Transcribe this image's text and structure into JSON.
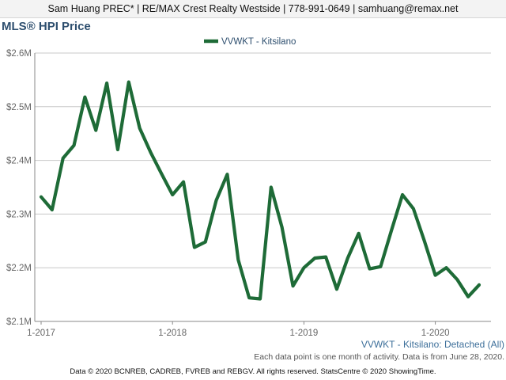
{
  "header": {
    "contact": "Sam Huang PREC* | RE/MAX Crest Realty Westside | 778-991-0649 | samhuang@remax.net"
  },
  "chart_data": {
    "type": "line",
    "title": "MLS® HPI Price",
    "legend_position": "top-center",
    "grid": true,
    "ylim": [
      2100000,
      2600000
    ],
    "y_ticks": [
      {
        "value": 2600000,
        "label": "$2.6M"
      },
      {
        "value": 2500000,
        "label": "$2.5M"
      },
      {
        "value": 2400000,
        "label": "$2.4M"
      },
      {
        "value": 2300000,
        "label": "$2.3M"
      },
      {
        "value": 2200000,
        "label": "$2.2M"
      },
      {
        "value": 2100000,
        "label": "$2.1M"
      }
    ],
    "x_ticks": [
      {
        "index": 0,
        "label": "1-2017"
      },
      {
        "index": 12,
        "label": "1-2018"
      },
      {
        "index": 24,
        "label": "1-2019"
      },
      {
        "index": 36,
        "label": "1-2020"
      }
    ],
    "x": [
      "1-2017",
      "2-2017",
      "3-2017",
      "4-2017",
      "5-2017",
      "6-2017",
      "7-2017",
      "8-2017",
      "9-2017",
      "10-2017",
      "11-2017",
      "12-2017",
      "1-2018",
      "2-2018",
      "3-2018",
      "4-2018",
      "5-2018",
      "6-2018",
      "7-2018",
      "8-2018",
      "9-2018",
      "10-2018",
      "11-2018",
      "12-2018",
      "1-2019",
      "2-2019",
      "3-2019",
      "4-2019",
      "5-2019",
      "6-2019",
      "7-2019",
      "8-2019",
      "9-2019",
      "10-2019",
      "11-2019",
      "12-2019",
      "1-2020",
      "2-2020",
      "3-2020",
      "4-2020",
      "5-2020"
    ],
    "series": [
      {
        "name": "VVWKT - Kitsilano",
        "color": "#1e6b37",
        "values": [
          2332000,
          2308000,
          2404000,
          2428000,
          2518000,
          2456000,
          2544000,
          2420000,
          2546000,
          2460000,
          2415000,
          2375000,
          2336000,
          2360000,
          2238000,
          2248000,
          2326000,
          2374000,
          2215000,
          2144000,
          2142000,
          2350000,
          2275000,
          2166000,
          2200000,
          2218000,
          2220000,
          2160000,
          2218000,
          2264000,
          2198000,
          2202000,
          2270000,
          2336000,
          2310000,
          2250000,
          2186000,
          2200000,
          2178000,
          2146000,
          2168000
        ]
      }
    ]
  },
  "caption": "VVWKT - Kitsilano: Detached (All)",
  "note": "Each data point is one month of activity. Data is from June 28, 2020.",
  "footer": "Data © 2020 BCNREB, CADREB, FVREB and REBGV. All rights reserved. StatsCentre © 2020 ShowingTime."
}
